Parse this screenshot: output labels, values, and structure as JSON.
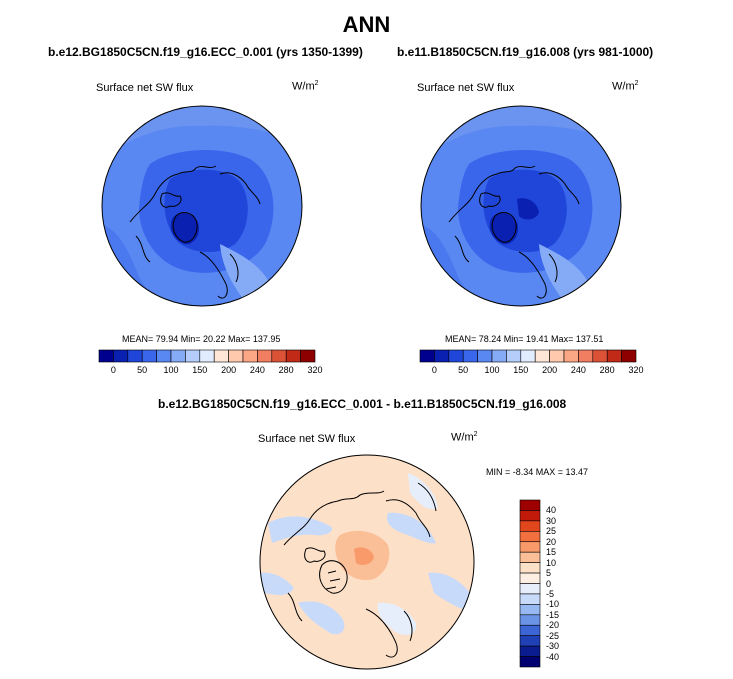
{
  "figure": {
    "title": "ANN"
  },
  "panels": [
    {
      "case_title": "b.e12.BG1850C5CN.f19_g16.ECC_0.001 (yrs 1350-1399)",
      "variable": "Surface net SW flux",
      "units": "W/m",
      "units_exp": "2",
      "stats": "MEAN=  79.94  Min=  20.22  Max= 137.95"
    },
    {
      "case_title": "b.e11.B1850C5CN.f19_g16.008 (yrs 981-1000)",
      "variable": "Surface net SW flux",
      "units": "W/m",
      "units_exp": "2",
      "stats": "MEAN=  78.24  Min=  19.41  Max= 137.51"
    },
    {
      "case_title": "b.e12.BG1850C5CN.f19_g16.ECC_0.001 - b.e11.B1850C5CN.f19_g16.008",
      "variable": "Surface net SW flux",
      "units": "W/m",
      "units_exp": "2",
      "stats": "MIN = -8.34 MAX =  13.47"
    }
  ],
  "colorbar_abs": {
    "colors": [
      "#00008e",
      "#0a20b0",
      "#1f46d8",
      "#3a66ec",
      "#5a88f2",
      "#86abf6",
      "#b5cdfa",
      "#e2ecff",
      "#ffe6d6",
      "#ffc9ad",
      "#fba685",
      "#f17e60",
      "#dc5237",
      "#c02a17",
      "#8e0000"
    ],
    "ticks": [
      "0",
      "50",
      "100",
      "150",
      "200",
      "240",
      "280",
      "320"
    ]
  },
  "colorbar_diff": {
    "colors": [
      "#9e0000",
      "#c21a0a",
      "#e2461d",
      "#f27040",
      "#f89a6a",
      "#fbbf98",
      "#fde0c8",
      "#fdeee4",
      "#e6eefb",
      "#c8dafa",
      "#98b8f2",
      "#6b93e6",
      "#3c66d6",
      "#2040b6",
      "#0a1c90",
      "#000070"
    ],
    "ticks": [
      "40",
      "30",
      "25",
      "20",
      "15",
      "10",
      "5",
      "0",
      "-5",
      "-10",
      "-15",
      "-20",
      "-25",
      "-30",
      "-40"
    ]
  }
}
